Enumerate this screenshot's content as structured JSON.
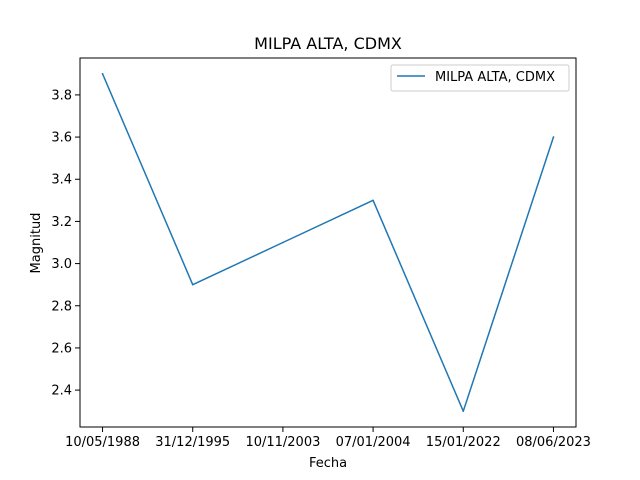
{
  "chart_data": {
    "type": "line",
    "title": "MILPA ALTA, CDMX",
    "xlabel": "Fecha",
    "ylabel": "Magnitud",
    "categories": [
      "10/05/1988",
      "31/12/1995",
      "10/11/2003",
      "07/01/2004",
      "15/01/2022",
      "08/06/2023"
    ],
    "series": [
      {
        "name": "MILPA ALTA, CDMX",
        "color": "#1f77b4",
        "values": [
          3.9,
          2.9,
          3.1,
          3.3,
          2.3,
          3.6
        ]
      }
    ],
    "yticks": [
      "2.4",
      "2.6",
      "2.8",
      "3.0",
      "3.2",
      "3.4",
      "3.6",
      "3.8"
    ],
    "ylim": [
      2.225,
      3.975
    ],
    "grid": false,
    "legend": "top-right"
  }
}
